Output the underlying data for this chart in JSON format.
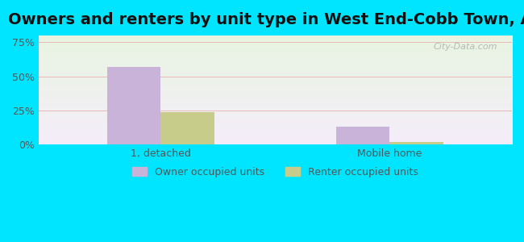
{
  "title": "Owners and renters by unit type in West End-Cobb Town, AL",
  "categories": [
    "1, detached",
    "Mobile home"
  ],
  "owner_values": [
    57,
    13
  ],
  "renter_values": [
    24,
    2
  ],
  "owner_color": "#c9b3d9",
  "renter_color": "#c8cc8a",
  "background_outer": "#00e5ff",
  "background_plot_top": "#e8f5e0",
  "background_plot_bottom": "#f5f0fa",
  "yticks": [
    0,
    25,
    50,
    75
  ],
  "ytick_labels": [
    "0%",
    "25%",
    "50%",
    "75%"
  ],
  "ylim": [
    0,
    80
  ],
  "bar_width": 0.35,
  "legend_labels": [
    "Owner occupied units",
    "Renter occupied units"
  ],
  "watermark": "City-Data.com",
  "title_fontsize": 14,
  "axis_label_fontsize": 9,
  "legend_fontsize": 9
}
